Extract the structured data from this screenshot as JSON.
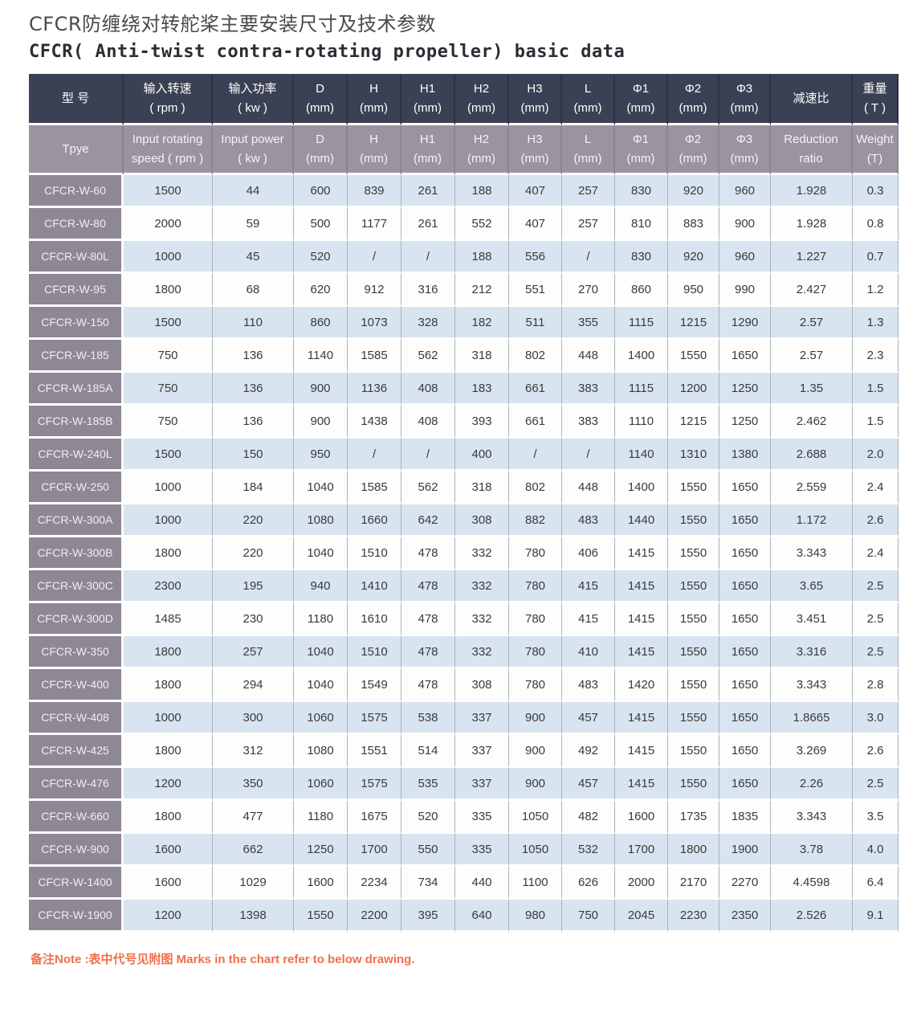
{
  "titles": {
    "chinese": "CFCR防缠绕对转舵桨主要安装尺寸及技术参数",
    "english": "CFCR( Anti-twist contra-rotating propeller) basic data"
  },
  "note": {
    "text": "备注Note :表中代号见附图 Marks in the chart refer to below drawing."
  },
  "colors": {
    "header_dark": "#3b4154",
    "header_mauve": "#9a94a1",
    "type_column": "#8e8894",
    "row_blue": "#d8e5f0",
    "row_white": "#fdfdfc",
    "note_orange": "#f0704a"
  },
  "table": {
    "columns": [
      {
        "id": "type",
        "cn": [
          "型 号"
        ],
        "en": [
          "Tpye"
        ]
      },
      {
        "id": "input-speed",
        "cn": [
          "输入转速",
          "( rpm )"
        ],
        "en": [
          "Input rotating",
          "speed ( rpm )"
        ]
      },
      {
        "id": "input-power",
        "cn": [
          "输入功率",
          "( kw )"
        ],
        "en": [
          "Input power",
          "( kw )"
        ]
      },
      {
        "id": "d",
        "cn": [
          "D",
          "(mm)"
        ],
        "en": [
          "D",
          "(mm)"
        ]
      },
      {
        "id": "h",
        "cn": [
          "H",
          "(mm)"
        ],
        "en": [
          "H",
          "(mm)"
        ]
      },
      {
        "id": "h1",
        "cn": [
          "H1",
          "(mm)"
        ],
        "en": [
          "H1",
          "(mm)"
        ]
      },
      {
        "id": "h2",
        "cn": [
          "H2",
          "(mm)"
        ],
        "en": [
          "H2",
          "(mm)"
        ]
      },
      {
        "id": "h3",
        "cn": [
          "H3",
          "(mm)"
        ],
        "en": [
          "H3",
          "(mm)"
        ]
      },
      {
        "id": "l",
        "cn": [
          "L",
          "(mm)"
        ],
        "en": [
          "L",
          "(mm)"
        ]
      },
      {
        "id": "phi1",
        "cn": [
          "Φ1",
          "(mm)"
        ],
        "en": [
          "Φ1",
          "(mm)"
        ]
      },
      {
        "id": "phi2",
        "cn": [
          "Φ2",
          "(mm)"
        ],
        "en": [
          "Φ2",
          "(mm)"
        ]
      },
      {
        "id": "phi3",
        "cn": [
          "Φ3",
          "(mm)"
        ],
        "en": [
          "Φ3",
          "(mm)"
        ]
      },
      {
        "id": "ratio",
        "cn": [
          "减速比"
        ],
        "en": [
          "Reduction",
          "ratio"
        ]
      },
      {
        "id": "weight",
        "cn": [
          "重量",
          "( T )"
        ],
        "en": [
          "Weight",
          "(T)"
        ]
      }
    ],
    "rows": [
      {
        "type": "CFCR-W-60",
        "values": [
          "1500",
          "44",
          "600",
          "839",
          "261",
          "188",
          "407",
          "257",
          "830",
          "920",
          "960",
          "1.928",
          "0.3"
        ]
      },
      {
        "type": "CFCR-W-80",
        "values": [
          "2000",
          "59",
          "500",
          "1177",
          "261",
          "552",
          "407",
          "257",
          "810",
          "883",
          "900",
          "1.928",
          "0.8"
        ]
      },
      {
        "type": "CFCR-W-80L",
        "values": [
          "1000",
          "45",
          "520",
          "/",
          "/",
          "188",
          "556",
          "/",
          "830",
          "920",
          "960",
          "1.227",
          "0.7"
        ]
      },
      {
        "type": "CFCR-W-95",
        "values": [
          "1800",
          "68",
          "620",
          "912",
          "316",
          "212",
          "551",
          "270",
          "860",
          "950",
          "990",
          "2.427",
          "1.2"
        ]
      },
      {
        "type": "CFCR-W-150",
        "values": [
          "1500",
          "110",
          "860",
          "1073",
          "328",
          "182",
          "511",
          "355",
          "1115",
          "1215",
          "1290",
          "2.57",
          "1.3"
        ]
      },
      {
        "type": "CFCR-W-185",
        "values": [
          "750",
          "136",
          "1140",
          "1585",
          "562",
          "318",
          "802",
          "448",
          "1400",
          "1550",
          "1650",
          "2.57",
          "2.3"
        ]
      },
      {
        "type": "CFCR-W-185A",
        "values": [
          "750",
          "136",
          "900",
          "1136",
          "408",
          "183",
          "661",
          "383",
          "1115",
          "1200",
          "1250",
          "1.35",
          "1.5"
        ]
      },
      {
        "type": "CFCR-W-185B",
        "values": [
          "750",
          "136",
          "900",
          "1438",
          "408",
          "393",
          "661",
          "383",
          "1110",
          "1215",
          "1250",
          "2.462",
          "1.5"
        ]
      },
      {
        "type": "CFCR-W-240L",
        "values": [
          "1500",
          "150",
          "950",
          "/",
          "/",
          "400",
          "/",
          "/",
          "1140",
          "1310",
          "1380",
          "2.688",
          "2.0"
        ]
      },
      {
        "type": "CFCR-W-250",
        "values": [
          "1000",
          "184",
          "1040",
          "1585",
          "562",
          "318",
          "802",
          "448",
          "1400",
          "1550",
          "1650",
          "2.559",
          "2.4"
        ]
      },
      {
        "type": "CFCR-W-300A",
        "values": [
          "1000",
          "220",
          "1080",
          "1660",
          "642",
          "308",
          "882",
          "483",
          "1440",
          "1550",
          "1650",
          "1.172",
          "2.6"
        ]
      },
      {
        "type": "CFCR-W-300B",
        "values": [
          "1800",
          "220",
          "1040",
          "1510",
          "478",
          "332",
          "780",
          "406",
          "1415",
          "1550",
          "1650",
          "3.343",
          "2.4"
        ]
      },
      {
        "type": "CFCR-W-300C",
        "values": [
          "2300",
          "195",
          "940",
          "1410",
          "478",
          "332",
          "780",
          "415",
          "1415",
          "1550",
          "1650",
          "3.65",
          "2.5"
        ]
      },
      {
        "type": "CFCR-W-300D",
        "values": [
          "1485",
          "230",
          "1180",
          "1610",
          "478",
          "332",
          "780",
          "415",
          "1415",
          "1550",
          "1650",
          "3.451",
          "2.5"
        ]
      },
      {
        "type": "CFCR-W-350",
        "values": [
          "1800",
          "257",
          "1040",
          "1510",
          "478",
          "332",
          "780",
          "410",
          "1415",
          "1550",
          "1650",
          "3.316",
          "2.5"
        ]
      },
      {
        "type": "CFCR-W-400",
        "values": [
          "1800",
          "294",
          "1040",
          "1549",
          "478",
          "308",
          "780",
          "483",
          "1420",
          "1550",
          "1650",
          "3.343",
          "2.8"
        ]
      },
      {
        "type": "CFCR-W-408",
        "values": [
          "1000",
          "300",
          "1060",
          "1575",
          "538",
          "337",
          "900",
          "457",
          "1415",
          "1550",
          "1650",
          "1.8665",
          "3.0"
        ]
      },
      {
        "type": "CFCR-W-425",
        "values": [
          "1800",
          "312",
          "1080",
          "1551",
          "514",
          "337",
          "900",
          "492",
          "1415",
          "1550",
          "1650",
          "3.269",
          "2.6"
        ]
      },
      {
        "type": "CFCR-W-476",
        "values": [
          "1200",
          "350",
          "1060",
          "1575",
          "535",
          "337",
          "900",
          "457",
          "1415",
          "1550",
          "1650",
          "2.26",
          "2.5"
        ]
      },
      {
        "type": "CFCR-W-660",
        "values": [
          "1800",
          "477",
          "1180",
          "1675",
          "520",
          "335",
          "1050",
          "482",
          "1600",
          "1735",
          "1835",
          "3.343",
          "3.5"
        ]
      },
      {
        "type": "CFCR-W-900",
        "values": [
          "1600",
          "662",
          "1250",
          "1700",
          "550",
          "335",
          "1050",
          "532",
          "1700",
          "1800",
          "1900",
          "3.78",
          "4.0"
        ]
      },
      {
        "type": "CFCR-W-1400",
        "values": [
          "1600",
          "1029",
          "1600",
          "2234",
          "734",
          "440",
          "1100",
          "626",
          "2000",
          "2170",
          "2270",
          "4.4598",
          "6.4"
        ]
      },
      {
        "type": "CFCR-W-1900",
        "values": [
          "1200",
          "1398",
          "1550",
          "2200",
          "395",
          "640",
          "980",
          "750",
          "2045",
          "2230",
          "2350",
          "2.526",
          "9.1"
        ]
      }
    ]
  }
}
